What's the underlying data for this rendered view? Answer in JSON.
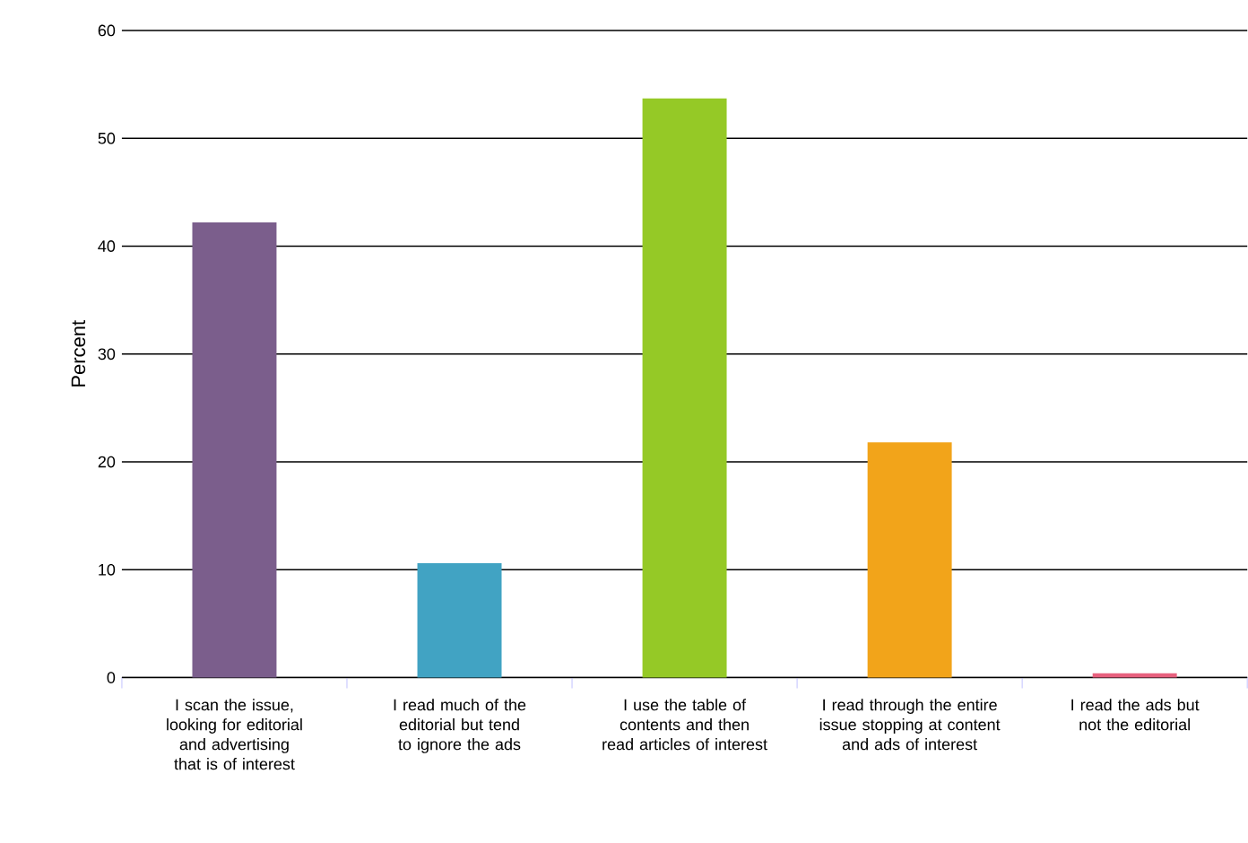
{
  "chart_data": {
    "type": "bar",
    "ylabel": "Percent",
    "categories": [
      "I scan the issue, looking for editorial and advertising that is of interest",
      "I read much of the editorial but tend to ignore the ads",
      "I use the table of contents and then read articles of interest",
      "I read through the entire issue stopping at content and ads of interest",
      "I read the ads but not the editorial"
    ],
    "values": [
      42.2,
      10.6,
      53.7,
      21.8,
      0.4
    ],
    "colors": [
      "#7b5e8c",
      "#41a3c3",
      "#95c926",
      "#f2a41a",
      "#e8607e"
    ],
    "ylim": [
      0,
      60
    ],
    "yticks": [
      0,
      10,
      20,
      30,
      40,
      50,
      60
    ],
    "grid": "y"
  }
}
